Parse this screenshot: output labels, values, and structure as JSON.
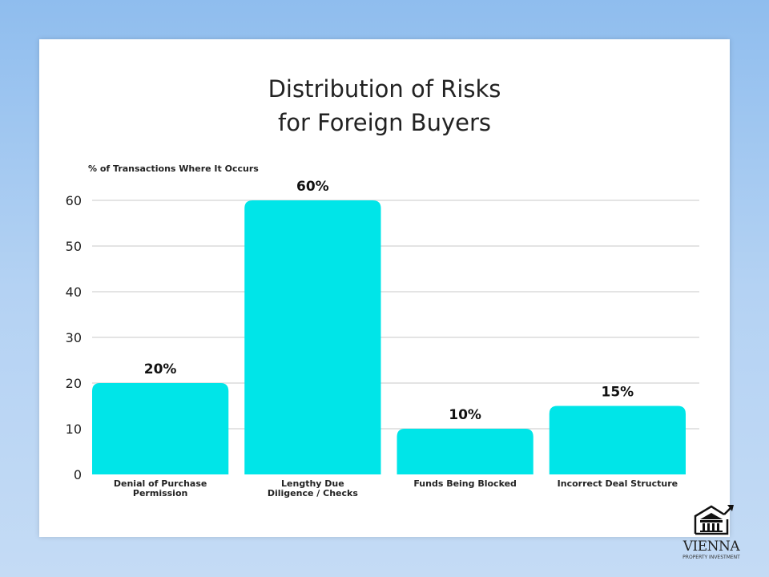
{
  "chart_data": {
    "type": "bar",
    "title": [
      "Distribution of Risks",
      "for Foreign Buyers"
    ],
    "ylabel": "% of Transactions Where It Occurs",
    "xlabel": "",
    "categories": [
      [
        "Denial of Purchase",
        "Permission"
      ],
      [
        "Lengthy Due",
        "Diligence / Checks"
      ],
      [
        "Funds Being Blocked"
      ],
      [
        "Incorrect Deal Structure"
      ]
    ],
    "values": [
      20,
      60,
      10,
      15
    ],
    "data_labels": [
      "20%",
      "60%",
      "10%",
      "15%"
    ],
    "ylim": [
      0,
      60
    ],
    "yticks": [
      0,
      10,
      20,
      30,
      40,
      50,
      60
    ],
    "grid": true,
    "bar_color": "#00e5e8"
  },
  "logo": {
    "name": "VIENNA",
    "subtitle": "PROPERTY INVESTMENT"
  }
}
